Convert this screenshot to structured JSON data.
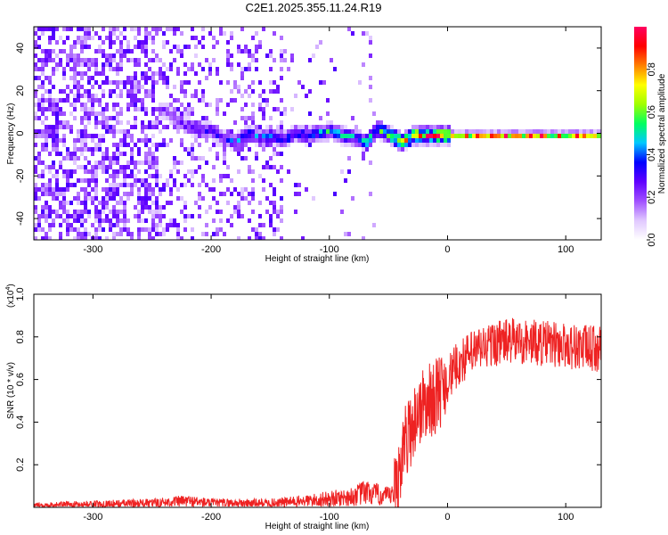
{
  "title": "C2E1.2025.355.11.24.R19",
  "chart_data": [
    {
      "type": "heatmap",
      "xlabel": "Height of straight line (km)",
      "ylabel": "Frequency (Hz)",
      "xlim": [
        -350,
        130
      ],
      "ylim": [
        -50,
        50
      ],
      "xticks": [
        -300,
        -200,
        -100,
        0,
        100
      ],
      "xtick_labels": [
        "-300",
        "-200",
        "-100",
        "0",
        "100"
      ],
      "yticks": [
        -40,
        -20,
        0,
        20,
        40
      ],
      "ytick_labels": [
        "-40",
        "-20",
        "0",
        "20",
        "40"
      ],
      "colorbar": {
        "label": "Normalized spectral amplitude",
        "range": [
          0,
          1
        ],
        "ticks": [
          0,
          0.2,
          0.4,
          0.6,
          0.8
        ],
        "tick_labels": [
          "0.0",
          "0.2",
          "0.4",
          "0.6",
          "0.8"
        ],
        "colors": [
          "#ffffff",
          "#e0c8ff",
          "#a050ff",
          "#6000ff",
          "#0000ff",
          "#00c8ff",
          "#00ff60",
          "#a0ff00",
          "#ffff00",
          "#ff8000",
          "#ff0000",
          "#ff0060"
        ]
      },
      "ridge": {
        "heights": [
          -240,
          -230,
          -220,
          -210,
          -200,
          -190,
          -180,
          -170,
          -160,
          -150,
          -140,
          -130,
          -120,
          -110,
          -100,
          -90,
          -80,
          -70,
          -60,
          -50,
          -40,
          -30,
          -20,
          -10,
          0,
          20,
          40,
          60,
          80,
          100,
          130
        ],
        "frequencies": [
          12,
          7,
          4,
          3,
          2,
          -2,
          -3,
          1,
          -1,
          0,
          -2,
          1,
          0,
          1,
          2,
          0,
          -1,
          -3,
          3,
          0,
          -3,
          0,
          0,
          0,
          0,
          0,
          0,
          0,
          0,
          0,
          0
        ],
        "amplitude": [
          0.25,
          0.3,
          0.3,
          0.35,
          0.35,
          0.35,
          0.4,
          0.4,
          0.4,
          0.45,
          0.45,
          0.45,
          0.45,
          0.5,
          0.5,
          0.5,
          0.5,
          0.55,
          0.6,
          0.7,
          0.8,
          0.85,
          0.9,
          0.9,
          0.95,
          0.95,
          0.95,
          0.95,
          0.95,
          0.95,
          0.95
        ]
      }
    },
    {
      "type": "line",
      "xlabel": "Height of straight line (km)",
      "ylabel": "SNR (10 * v/v)",
      "scale_label": "(x10",
      "scale_exponent": "4",
      "scale_close": ")",
      "xlim": [
        -350,
        130
      ],
      "ylim": [
        0,
        1.0
      ],
      "xticks": [
        -300,
        -200,
        -100,
        0,
        100
      ],
      "xtick_labels": [
        "-300",
        "-200",
        "-100",
        "0",
        "100"
      ],
      "yticks": [
        0.2,
        0.4,
        0.6,
        0.8,
        1.0
      ],
      "ytick_labels": [
        "0.2",
        "0.4",
        "0.6",
        "0.8",
        "1.0"
      ],
      "color": "#ee2222",
      "series": [
        {
          "name": "SNR",
          "x": [
            -350,
            -300,
            -250,
            -220,
            -200,
            -150,
            -120,
            -100,
            -80,
            -70,
            -60,
            -50,
            -45,
            -40,
            -35,
            -30,
            -25,
            -20,
            -10,
            0,
            10,
            20,
            30,
            40,
            50,
            60,
            80,
            100,
            130
          ],
          "y": [
            0.01,
            0.015,
            0.02,
            0.03,
            0.02,
            0.02,
            0.03,
            0.04,
            0.05,
            0.07,
            0.06,
            0.05,
            0.06,
            0.2,
            0.32,
            0.38,
            0.45,
            0.48,
            0.52,
            0.6,
            0.68,
            0.72,
            0.75,
            0.77,
            0.78,
            0.78,
            0.77,
            0.76,
            0.74
          ]
        }
      ]
    }
  ]
}
